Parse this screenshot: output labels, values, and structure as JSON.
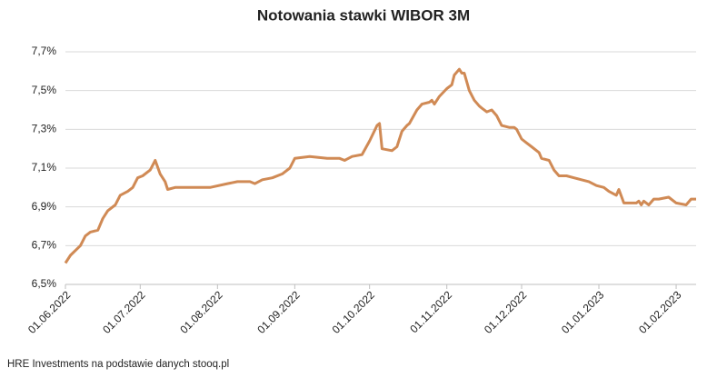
{
  "chart_data": {
    "type": "line",
    "title": "Notowania stawki WIBOR 3M",
    "source": "HRE Investments na podstawie danych stooq.pl",
    "color": "#d08a55",
    "grid": true,
    "x": [
      "01.06.2022",
      "03.06.2022",
      "07.06.2022",
      "09.06.2022",
      "11.06.2022",
      "14.06.2022",
      "16.06.2022",
      "18.06.2022",
      "21.06.2022",
      "23.06.2022",
      "26.06.2022",
      "28.06.2022",
      "30.06.2022",
      "02.07.2022",
      "05.07.2022",
      "07.07.2022",
      "09.07.2022",
      "11.07.2022",
      "12.07.2022",
      "15.07.2022",
      "21.07.2022",
      "29.07.2022",
      "05.08.2022",
      "09.08.2022",
      "14.08.2022",
      "16.08.2022",
      "19.08.2022",
      "23.08.2022",
      "27.08.2022",
      "30.08.2022",
      "01.09.2022",
      "07.09.2022",
      "14.09.2022",
      "19.09.2022",
      "21.09.2022",
      "24.09.2022",
      "28.09.2022",
      "01.10.2022",
      "04.10.2022",
      "05.10.2022",
      "06.10.2022",
      "10.10.2022",
      "12.10.2022",
      "14.10.2022",
      "16.10.2022",
      "17.10.2022",
      "20.10.2022",
      "22.10.2022",
      "25.10.2022",
      "26.10.2022",
      "27.10.2022",
      "29.10.2022",
      "01.11.2022",
      "03.11.2022",
      "04.11.2022",
      "06.11.2022",
      "07.11.2022",
      "08.11.2022",
      "10.11.2022",
      "12.11.2022",
      "14.11.2022",
      "15.11.2022",
      "17.11.2022",
      "19.11.2022",
      "21.11.2022",
      "23.11.2022",
      "26.11.2022",
      "28.11.2022",
      "29.11.2022",
      "01.12.2022",
      "03.12.2022",
      "05.12.2022",
      "08.12.2022",
      "09.12.2022",
      "12.12.2022",
      "14.12.2022",
      "16.12.2022",
      "19.12.2022",
      "22.12.2022",
      "25.12.2022",
      "28.12.2022",
      "31.12.2022",
      "03.01.2023",
      "05.01.2023",
      "08.01.2023",
      "09.01.2023",
      "11.01.2023",
      "16.01.2023",
      "17.01.2023",
      "18.01.2023",
      "19.01.2023",
      "21.01.2023",
      "23.01.2023",
      "25.01.2023",
      "29.01.2023",
      "01.02.2023",
      "05.02.2023",
      "07.02.2023",
      "09.02.2023"
    ],
    "values": [
      6.61,
      6.65,
      6.7,
      6.75,
      6.77,
      6.78,
      6.84,
      6.88,
      6.91,
      6.96,
      6.98,
      7.0,
      7.05,
      7.06,
      7.09,
      7.14,
      7.07,
      7.03,
      6.99,
      7.0,
      7.0,
      7.0,
      7.02,
      7.03,
      7.03,
      7.02,
      7.04,
      7.05,
      7.07,
      7.1,
      7.15,
      7.16,
      7.15,
      7.15,
      7.14,
      7.16,
      7.17,
      7.24,
      7.32,
      7.33,
      7.2,
      7.19,
      7.21,
      7.29,
      7.32,
      7.33,
      7.4,
      7.43,
      7.44,
      7.45,
      7.43,
      7.47,
      7.51,
      7.53,
      7.58,
      7.61,
      7.59,
      7.59,
      7.5,
      7.45,
      7.42,
      7.41,
      7.39,
      7.4,
      7.37,
      7.32,
      7.31,
      7.31,
      7.3,
      7.25,
      7.23,
      7.21,
      7.18,
      7.15,
      7.14,
      7.09,
      7.06,
      7.06,
      7.05,
      7.04,
      7.03,
      7.01,
      7.0,
      6.98,
      6.96,
      6.99,
      6.92,
      6.92,
      6.93,
      6.91,
      6.93,
      6.91,
      6.94,
      6.94,
      6.95,
      6.92,
      6.91,
      6.94,
      6.94
    ],
    "xlim": [
      "01.06.2022",
      "09.02.2023"
    ],
    "xticks": [
      "01.06.2022",
      "01.07.2022",
      "01.08.2022",
      "01.09.2022",
      "01.10.2022",
      "01.11.2022",
      "01.12.2022",
      "01.01.2023",
      "01.02.2023"
    ],
    "ylim": [
      6.5,
      7.7
    ],
    "yticks": [
      {
        "value": 6.5,
        "label": "6,5%"
      },
      {
        "value": 6.7,
        "label": "6,7%"
      },
      {
        "value": 6.9,
        "label": "6,9%"
      },
      {
        "value": 7.1,
        "label": "7,1%"
      },
      {
        "value": 7.3,
        "label": "7,3%"
      },
      {
        "value": 7.5,
        "label": "7,5%"
      },
      {
        "value": 7.7,
        "label": "7,7%"
      }
    ]
  }
}
